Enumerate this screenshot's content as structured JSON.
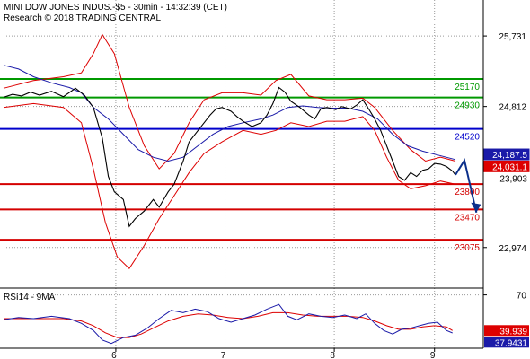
{
  "header": {
    "title": "MINI DOW JONES INDUS.-$5 - 30min - 14:32:39 (CET)",
    "research": "Research © 2018 TRADING CENTRAL"
  },
  "colors": {
    "price": "#000000",
    "bollinger": "#dd0000",
    "moving_average": "#1a1aa8",
    "support": "#d40000",
    "resistance_green": "#009900",
    "pivot_blue": "#0000cc",
    "forecast_arrow": "#0b2f8a",
    "rsi": "#1a1aa8",
    "rsi_ma": "#dd0000"
  },
  "chart_data": [
    {
      "type": "line",
      "title": "MINI DOW JONES INDUS.-$5 - 30min",
      "x_labels": [
        "6",
        "7",
        "8",
        "9"
      ],
      "y_ticks": [
        25731,
        24812,
        22974
      ],
      "ylim": [
        22480,
        26200
      ],
      "price_path": [
        [
          0,
          24932
        ],
        [
          3,
          24970
        ],
        [
          6,
          24950
        ],
        [
          9,
          25000
        ],
        [
          12,
          24960
        ],
        [
          16,
          25010
        ],
        [
          20,
          24940
        ],
        [
          24,
          25050
        ],
        [
          27,
          24960
        ],
        [
          30,
          24800
        ],
        [
          33,
          24400
        ],
        [
          35,
          23900
        ],
        [
          37,
          23700
        ],
        [
          40,
          23600
        ],
        [
          42,
          23250
        ],
        [
          44,
          23350
        ],
        [
          47,
          23450
        ],
        [
          50,
          23600
        ],
        [
          52,
          23500
        ],
        [
          55,
          23700
        ],
        [
          57,
          23800
        ],
        [
          60,
          24100
        ],
        [
          62,
          24350
        ],
        [
          65,
          24500
        ],
        [
          67,
          24600
        ],
        [
          69,
          24700
        ],
        [
          71,
          24780
        ],
        [
          73,
          24800
        ],
        [
          76,
          24750
        ],
        [
          78,
          24680
        ],
        [
          80,
          24620
        ],
        [
          83,
          24550
        ],
        [
          86,
          24600
        ],
        [
          88,
          24700
        ],
        [
          90,
          24850
        ],
        [
          92,
          25060
        ],
        [
          94,
          25000
        ],
        [
          96,
          24880
        ],
        [
          99,
          24800
        ],
        [
          102,
          24700
        ],
        [
          104,
          24650
        ],
        [
          106,
          24780
        ],
        [
          108,
          24800
        ],
        [
          111,
          24770
        ],
        [
          113,
          24810
        ],
        [
          116,
          24780
        ],
        [
          118,
          24830
        ],
        [
          120,
          24900
        ],
        [
          122,
          24780
        ],
        [
          124,
          24650
        ],
        [
          126,
          24500
        ],
        [
          128,
          24300
        ],
        [
          130,
          24100
        ],
        [
          132,
          23900
        ],
        [
          134,
          23850
        ],
        [
          136,
          23950
        ],
        [
          138,
          23900
        ],
        [
          140,
          23980
        ],
        [
          142,
          24000
        ],
        [
          144,
          24070
        ],
        [
          146,
          24060
        ],
        [
          148,
          24030
        ],
        [
          150,
          23970
        ],
        [
          151,
          23920
        ]
      ],
      "bollinger_upper_path": [
        [
          0,
          25050
        ],
        [
          10,
          25150
        ],
        [
          20,
          25200
        ],
        [
          26,
          25250
        ],
        [
          30,
          25500
        ],
        [
          33,
          25750
        ],
        [
          37,
          25500
        ],
        [
          42,
          24800
        ],
        [
          47,
          24300
        ],
        [
          52,
          24000
        ],
        [
          57,
          24200
        ],
        [
          62,
          24600
        ],
        [
          67,
          24900
        ],
        [
          73,
          24990
        ],
        [
          80,
          24990
        ],
        [
          86,
          24960
        ],
        [
          91,
          25150
        ],
        [
          96,
          25230
        ],
        [
          102,
          24950
        ],
        [
          108,
          24900
        ],
        [
          114,
          24900
        ],
        [
          120,
          24920
        ],
        [
          124,
          24800
        ],
        [
          130,
          24500
        ],
        [
          136,
          24250
        ],
        [
          141,
          24100
        ],
        [
          146,
          24150
        ],
        [
          151,
          24100
        ]
      ],
      "bollinger_lower_path": [
        [
          0,
          24800
        ],
        [
          10,
          24850
        ],
        [
          20,
          24800
        ],
        [
          26,
          24600
        ],
        [
          30,
          24000
        ],
        [
          34,
          23300
        ],
        [
          38,
          22850
        ],
        [
          42,
          22700
        ],
        [
          47,
          23000
        ],
        [
          52,
          23350
        ],
        [
          57,
          23650
        ],
        [
          62,
          23950
        ],
        [
          67,
          24200
        ],
        [
          73,
          24350
        ],
        [
          80,
          24500
        ],
        [
          86,
          24450
        ],
        [
          91,
          24500
        ],
        [
          96,
          24600
        ],
        [
          102,
          24550
        ],
        [
          108,
          24620
        ],
        [
          114,
          24620
        ],
        [
          120,
          24680
        ],
        [
          124,
          24500
        ],
        [
          128,
          24150
        ],
        [
          132,
          23850
        ],
        [
          136,
          23740
        ],
        [
          141,
          23780
        ],
        [
          146,
          23840
        ],
        [
          151,
          23800
        ]
      ],
      "moving_average_path": [
        [
          0,
          25350
        ],
        [
          5,
          25300
        ],
        [
          10,
          25200
        ],
        [
          16,
          25120
        ],
        [
          22,
          25060
        ],
        [
          26,
          24990
        ],
        [
          30,
          24800
        ],
        [
          35,
          24650
        ],
        [
          40,
          24450
        ],
        [
          45,
          24250
        ],
        [
          50,
          24150
        ],
        [
          55,
          24100
        ],
        [
          60,
          24150
        ],
        [
          65,
          24300
        ],
        [
          70,
          24450
        ],
        [
          75,
          24550
        ],
        [
          80,
          24600
        ],
        [
          86,
          24650
        ],
        [
          90,
          24700
        ],
        [
          95,
          24800
        ],
        [
          100,
          24820
        ],
        [
          105,
          24800
        ],
        [
          110,
          24790
        ],
        [
          115,
          24790
        ],
        [
          120,
          24750
        ],
        [
          125,
          24650
        ],
        [
          130,
          24450
        ],
        [
          135,
          24300
        ],
        [
          140,
          24230
        ],
        [
          145,
          24180
        ],
        [
          151,
          24120
        ]
      ],
      "horizontal_levels": [
        {
          "label": "25170",
          "value": 25170,
          "color": "#009900"
        },
        {
          "label": "24930",
          "value": 24930,
          "color": "#009900"
        },
        {
          "label": "24520",
          "value": 24520,
          "color": "#0000cc"
        },
        {
          "label": "23800",
          "value": 23800,
          "color": "#d40000"
        },
        {
          "label": "23470",
          "value": 23470,
          "color": "#d40000"
        },
        {
          "label": "23075",
          "value": 23075,
          "color": "#d40000"
        }
      ],
      "forecast_path": [
        [
          151,
          23920
        ],
        [
          154,
          24110
        ],
        [
          158,
          23430
        ]
      ],
      "value_badges": [
        {
          "label": "24,187.5",
          "value": 24187.5,
          "bg": "#1a1aa8",
          "fg": "#ffffff"
        },
        {
          "label": "24,031.1",
          "value": 24031.1,
          "bg": "#dd0000",
          "fg": "#ffffff"
        },
        {
          "label": "23,903",
          "value": 23903,
          "bg": "#ffffff",
          "fg": "#000000"
        }
      ]
    },
    {
      "type": "line",
      "title": "RSI14 - 9MA",
      "y_ticks": [
        70
      ],
      "ylim": [
        25,
        75
      ],
      "rsi_path": [
        [
          0,
          49
        ],
        [
          5,
          51
        ],
        [
          10,
          50
        ],
        [
          16,
          52
        ],
        [
          22,
          50
        ],
        [
          26,
          46
        ],
        [
          30,
          40
        ],
        [
          33,
          32
        ],
        [
          36,
          29
        ],
        [
          40,
          34
        ],
        [
          44,
          36
        ],
        [
          48,
          42
        ],
        [
          52,
          50
        ],
        [
          56,
          57
        ],
        [
          60,
          55
        ],
        [
          64,
          58
        ],
        [
          68,
          56
        ],
        [
          72,
          50
        ],
        [
          76,
          47
        ],
        [
          80,
          50
        ],
        [
          84,
          53
        ],
        [
          88,
          58
        ],
        [
          92,
          62
        ],
        [
          95,
          52
        ],
        [
          98,
          49
        ],
        [
          102,
          54
        ],
        [
          106,
          52
        ],
        [
          110,
          51
        ],
        [
          114,
          53
        ],
        [
          118,
          50
        ],
        [
          121,
          54
        ],
        [
          124,
          46
        ],
        [
          127,
          40
        ],
        [
          130,
          37
        ],
        [
          133,
          41
        ],
        [
          136,
          42
        ],
        [
          139,
          44
        ],
        [
          142,
          46
        ],
        [
          145,
          47
        ],
        [
          148,
          40
        ],
        [
          150,
          37.9
        ]
      ],
      "rsi_ma_path": [
        [
          0,
          50
        ],
        [
          10,
          50
        ],
        [
          20,
          50
        ],
        [
          26,
          48
        ],
        [
          30,
          44
        ],
        [
          34,
          38
        ],
        [
          38,
          34
        ],
        [
          42,
          34
        ],
        [
          46,
          37
        ],
        [
          50,
          42
        ],
        [
          55,
          48
        ],
        [
          60,
          52
        ],
        [
          65,
          54
        ],
        [
          70,
          53
        ],
        [
          75,
          51
        ],
        [
          80,
          50
        ],
        [
          85,
          52
        ],
        [
          90,
          55
        ],
        [
          95,
          55
        ],
        [
          100,
          53
        ],
        [
          105,
          52
        ],
        [
          110,
          52
        ],
        [
          115,
          52
        ],
        [
          120,
          51
        ],
        [
          124,
          48
        ],
        [
          128,
          44
        ],
        [
          132,
          41
        ],
        [
          136,
          41
        ],
        [
          140,
          43
        ],
        [
          144,
          44
        ],
        [
          148,
          43
        ],
        [
          150,
          39.9
        ]
      ],
      "value_badges": [
        {
          "label": "39.939",
          "value": 39.939,
          "bg": "#dd0000",
          "fg": "#ffffff"
        },
        {
          "label": "37.9431",
          "value": 37.9431,
          "bg": "#1a1aa8",
          "fg": "#ffffff"
        }
      ]
    }
  ]
}
